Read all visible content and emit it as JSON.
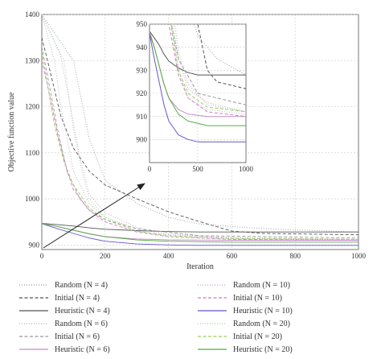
{
  "chart_data": {
    "type": "line",
    "xlabel": "Iteration",
    "ylabel": "Objective function value",
    "xlim": [
      0,
      1000
    ],
    "ylim": [
      890,
      1400
    ],
    "xticks": [
      "0",
      "200",
      "400",
      "600",
      "800",
      "1000"
    ],
    "yticks": [
      "900",
      "1000",
      "1100",
      "1200",
      "1300",
      "1400"
    ],
    "grid": true,
    "series": [
      {
        "name": "Random (N = 4)",
        "color": "#9a9a9a",
        "style": "dotted",
        "points": [
          [
            0,
            1400
          ],
          [
            100,
            1300
          ],
          [
            150,
            1130
          ],
          [
            200,
            1040
          ],
          [
            300,
            990
          ],
          [
            400,
            960
          ],
          [
            500,
            945
          ],
          [
            700,
            935
          ],
          [
            1000,
            928
          ]
        ]
      },
      {
        "name": "Initial (N = 4)",
        "color": "#555555",
        "style": "dashed",
        "points": [
          [
            0,
            1350
          ],
          [
            25,
            1280
          ],
          [
            60,
            1180
          ],
          [
            100,
            1110
          ],
          [
            150,
            1060
          ],
          [
            200,
            1030
          ],
          [
            300,
            1000
          ],
          [
            400,
            972
          ],
          [
            500,
            950
          ],
          [
            600,
            930
          ],
          [
            700,
            925
          ],
          [
            1000,
            922
          ]
        ]
      },
      {
        "name": "Heuristic (N = 4)",
        "color": "#555555",
        "style": "solid",
        "points": [
          [
            0,
            947
          ],
          [
            50,
            944
          ],
          [
            100,
            941
          ],
          [
            150,
            937
          ],
          [
            200,
            934
          ],
          [
            300,
            931
          ],
          [
            400,
            929
          ],
          [
            500,
            928
          ],
          [
            1000,
            928
          ]
        ]
      },
      {
        "name": "Random (N = 6)",
        "color": "#b0b0b0",
        "style": "dotted",
        "points": [
          [
            0,
            1400
          ],
          [
            40,
            1300
          ],
          [
            60,
            1200
          ],
          [
            100,
            1060
          ],
          [
            150,
            990
          ],
          [
            200,
            960
          ],
          [
            300,
            935
          ],
          [
            400,
            922
          ],
          [
            600,
            916
          ],
          [
            1000,
            912
          ]
        ]
      },
      {
        "name": "Initial (N = 6)",
        "color": "#999999",
        "style": "dashed",
        "points": [
          [
            0,
            1330
          ],
          [
            20,
            1260
          ],
          [
            50,
            1150
          ],
          [
            80,
            1060
          ],
          [
            120,
            1000
          ],
          [
            150,
            975
          ],
          [
            200,
            955
          ],
          [
            300,
            935
          ],
          [
            500,
            920
          ],
          [
            1000,
            915
          ]
        ]
      },
      {
        "name": "Heuristic (N = 6)",
        "color": "#c48fc4",
        "style": "solid",
        "points": [
          [
            0,
            947
          ],
          [
            50,
            940
          ],
          [
            100,
            932
          ],
          [
            150,
            924
          ],
          [
            200,
            918
          ],
          [
            300,
            913
          ],
          [
            400,
            911
          ],
          [
            600,
            910
          ],
          [
            1000,
            910
          ]
        ]
      },
      {
        "name": "Random (N = 10)",
        "color": "#c9a0d0",
        "style": "dotted",
        "points": [
          [
            0,
            1400
          ],
          [
            60,
            1310
          ],
          [
            90,
            1200
          ],
          [
            120,
            1090
          ],
          [
            150,
            1010
          ],
          [
            200,
            970
          ],
          [
            300,
            938
          ],
          [
            400,
            924
          ],
          [
            600,
            915
          ],
          [
            1000,
            912
          ]
        ]
      },
      {
        "name": "Initial (N = 10)",
        "color": "#d177d1",
        "style": "dashed",
        "points": [
          [
            0,
            1300
          ],
          [
            20,
            1240
          ],
          [
            50,
            1140
          ],
          [
            80,
            1060
          ],
          [
            100,
            1020
          ],
          [
            150,
            975
          ],
          [
            200,
            950
          ],
          [
            300,
            928
          ],
          [
            400,
            918
          ],
          [
            600,
            912
          ],
          [
            1000,
            910
          ]
        ]
      },
      {
        "name": "Heuristic (N = 10)",
        "color": "#6655cc",
        "style": "solid",
        "points": [
          [
            0,
            946
          ],
          [
            50,
            935
          ],
          [
            100,
            925
          ],
          [
            150,
            915
          ],
          [
            200,
            908
          ],
          [
            300,
            902
          ],
          [
            400,
            900
          ],
          [
            500,
            899
          ],
          [
            1000,
            899
          ]
        ]
      },
      {
        "name": "Random (N = 20)",
        "color": "#9ed49e",
        "style": "dotted",
        "points": [
          [
            0,
            1400
          ],
          [
            70,
            1300
          ],
          [
            100,
            1150
          ],
          [
            130,
            1050
          ],
          [
            150,
            1000
          ],
          [
            200,
            960
          ],
          [
            300,
            930
          ],
          [
            400,
            918
          ],
          [
            600,
            913
          ],
          [
            1000,
            911
          ]
        ]
      },
      {
        "name": "Initial (N = 20)",
        "color": "#9acd5a",
        "style": "dashed",
        "points": [
          [
            0,
            1320
          ],
          [
            15,
            1260
          ],
          [
            40,
            1160
          ],
          [
            70,
            1080
          ],
          [
            100,
            1030
          ],
          [
            150,
            980
          ],
          [
            200,
            955
          ],
          [
            300,
            930
          ],
          [
            400,
            920
          ],
          [
            600,
            914
          ],
          [
            1000,
            912
          ]
        ]
      },
      {
        "name": "Heuristic (N = 20)",
        "color": "#55aa44",
        "style": "solid",
        "points": [
          [
            0,
            946
          ],
          [
            50,
            940
          ],
          [
            100,
            932
          ],
          [
            150,
            924
          ],
          [
            200,
            918
          ],
          [
            300,
            911
          ],
          [
            400,
            908
          ],
          [
            600,
            906
          ],
          [
            1000,
            906
          ]
        ]
      }
    ],
    "inset": {
      "xlim": [
        0,
        1000
      ],
      "ylim": [
        890,
        950
      ],
      "xticks": [
        "0",
        "500",
        "1000"
      ],
      "yticks": [
        "900",
        "910",
        "920",
        "930",
        "940",
        "950"
      ]
    }
  }
}
